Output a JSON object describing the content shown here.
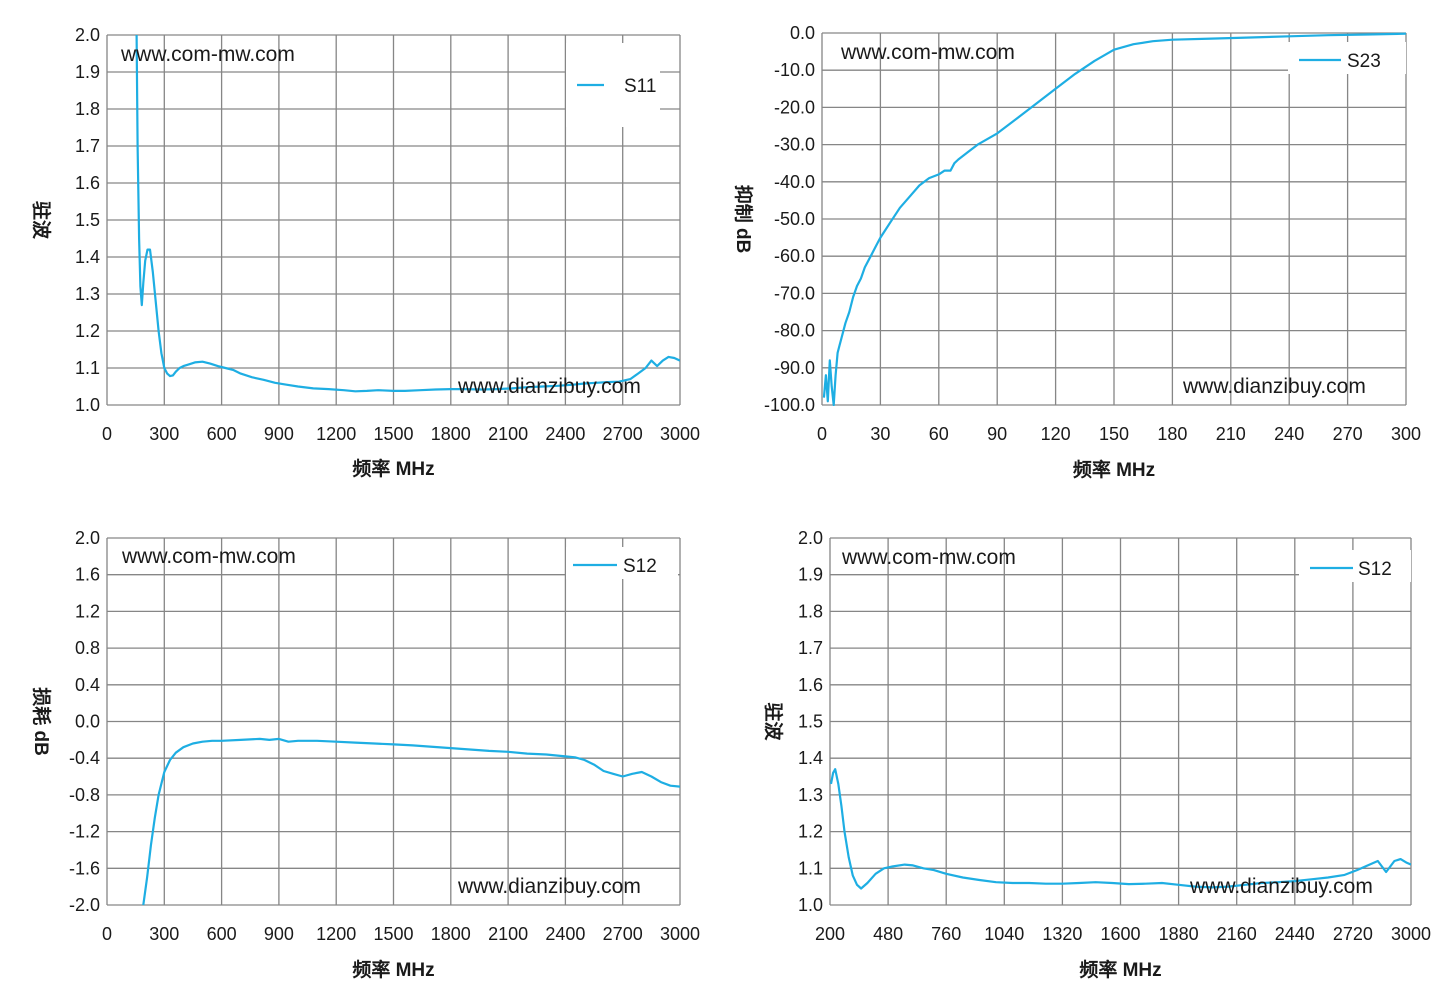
{
  "colors": {
    "series": "#1EAEE3",
    "grid": "#868686",
    "axis": "#868686",
    "text": "#1a1a1a"
  },
  "chart_data": [
    {
      "type": "line",
      "xlabel": "频率 MHz",
      "ylabel": "驻波",
      "xlim": [
        0,
        3000
      ],
      "ylim": [
        1.0,
        2.0
      ],
      "xticks": [
        "0",
        "300",
        "600",
        "900",
        "1200",
        "1500",
        "1800",
        "2100",
        "2400",
        "2700",
        "3000"
      ],
      "yticks": [
        "1.0",
        "1.1",
        "1.2",
        "1.3",
        "1.4",
        "1.5",
        "1.6",
        "1.7",
        "1.8",
        "1.9",
        "2.0"
      ],
      "watermarks": [
        "www.com-mw.com",
        "www.dianzibuy.com"
      ],
      "grid": true,
      "legend_position": "top-right",
      "series": [
        {
          "name": "S11",
          "x": [
            155,
            160,
            168,
            175,
            182,
            190,
            200,
            212,
            225,
            240,
            255,
            270,
            285,
            300,
            315,
            330,
            345,
            360,
            380,
            400,
            430,
            460,
            500,
            540,
            580,
            620,
            660,
            700,
            760,
            820,
            880,
            940,
            1000,
            1080,
            1160,
            1240,
            1300,
            1360,
            1420,
            1500,
            1560,
            1640,
            1720,
            1800,
            1880,
            1960,
            2040,
            2120,
            2200,
            2280,
            2360,
            2440,
            2500,
            2560,
            2620,
            2680,
            2740,
            2780,
            2820,
            2850,
            2880,
            2910,
            2940,
            2970,
            3000
          ],
          "y": [
            2.0,
            1.7,
            1.45,
            1.32,
            1.27,
            1.33,
            1.39,
            1.42,
            1.42,
            1.36,
            1.28,
            1.2,
            1.14,
            1.1,
            1.085,
            1.078,
            1.08,
            1.09,
            1.1,
            1.105,
            1.11,
            1.115,
            1.117,
            1.112,
            1.105,
            1.1,
            1.095,
            1.085,
            1.075,
            1.068,
            1.06,
            1.055,
            1.05,
            1.045,
            1.043,
            1.04,
            1.037,
            1.038,
            1.04,
            1.038,
            1.038,
            1.04,
            1.042,
            1.043,
            1.043,
            1.042,
            1.043,
            1.045,
            1.048,
            1.05,
            1.052,
            1.055,
            1.058,
            1.06,
            1.062,
            1.063,
            1.07,
            1.085,
            1.1,
            1.12,
            1.105,
            1.12,
            1.13,
            1.127,
            1.12
          ]
        }
      ]
    },
    {
      "type": "line",
      "xlabel": "频率 MHz",
      "ylabel": "抑制 dB",
      "xlim": [
        0,
        300
      ],
      "ylim": [
        -100,
        0
      ],
      "xticks": [
        "0",
        "30",
        "60",
        "90",
        "120",
        "150",
        "180",
        "210",
        "240",
        "270",
        "300"
      ],
      "yticks": [
        "-100.0",
        "-90.0",
        "-80.0",
        "-70.0",
        "-60.0",
        "-50.0",
        "-40.0",
        "-30.0",
        "-20.0",
        "-10.0",
        "0.0"
      ],
      "watermarks": [
        "www.com-mw.com",
        "www.dianzibuy.com"
      ],
      "grid": true,
      "legend_position": "top-right",
      "series": [
        {
          "name": "S23",
          "x": [
            1,
            2,
            3,
            4,
            5,
            6,
            7,
            8,
            9,
            10,
            12,
            14,
            16,
            18,
            20,
            22,
            25,
            28,
            30,
            35,
            40,
            45,
            50,
            55,
            60,
            63,
            66,
            68,
            70,
            75,
            80,
            90,
            100,
            110,
            120,
            130,
            140,
            150,
            160,
            170,
            180,
            200,
            220,
            240,
            260,
            280,
            300
          ],
          "y": [
            -98,
            -92,
            -99,
            -88,
            -95,
            -100,
            -92,
            -86,
            -84,
            -82,
            -78,
            -75,
            -71,
            -68,
            -66,
            -63,
            -60,
            -57,
            -55,
            -51,
            -47,
            -44,
            -41,
            -39,
            -38,
            -37,
            -37,
            -35,
            -34,
            -32,
            -30,
            -27,
            -23,
            -19,
            -15,
            -11,
            -7.5,
            -4.5,
            -3,
            -2.2,
            -1.8,
            -1.5,
            -1.2,
            -0.9,
            -0.6,
            -0.4,
            -0.2
          ]
        }
      ]
    },
    {
      "type": "line",
      "xlabel": "频率 MHz",
      "ylabel": "损耗 dB",
      "xlim": [
        0,
        3000
      ],
      "ylim": [
        -2.0,
        2.0
      ],
      "xticks": [
        "0",
        "300",
        "600",
        "900",
        "1200",
        "1500",
        "1800",
        "2100",
        "2400",
        "2700",
        "3000"
      ],
      "yticks": [
        "-2.0",
        "-1.6",
        "-1.2",
        "-0.8",
        "-0.4",
        "0.0",
        "0.4",
        "0.8",
        "1.2",
        "1.6",
        "2.0"
      ],
      "watermarks": [
        "www.com-mw.com",
        "www.dianzibuy.com"
      ],
      "grid": true,
      "legend_position": "top-right",
      "series": [
        {
          "name": "S12",
          "x": [
            190,
            210,
            230,
            250,
            270,
            300,
            330,
            360,
            400,
            450,
            500,
            550,
            600,
            700,
            800,
            850,
            900,
            950,
            1000,
            1100,
            1200,
            1300,
            1400,
            1500,
            1600,
            1800,
            2000,
            2100,
            2200,
            2300,
            2400,
            2450,
            2500,
            2550,
            2600,
            2650,
            2700,
            2750,
            2800,
            2850,
            2900,
            2950,
            3000
          ],
          "y": [
            -2.0,
            -1.7,
            -1.35,
            -1.05,
            -0.8,
            -0.55,
            -0.42,
            -0.34,
            -0.28,
            -0.24,
            -0.22,
            -0.21,
            -0.21,
            -0.2,
            -0.19,
            -0.2,
            -0.19,
            -0.22,
            -0.21,
            -0.21,
            -0.22,
            -0.23,
            -0.24,
            -0.25,
            -0.26,
            -0.29,
            -0.32,
            -0.33,
            -0.35,
            -0.36,
            -0.38,
            -0.39,
            -0.42,
            -0.47,
            -0.54,
            -0.57,
            -0.6,
            -0.57,
            -0.55,
            -0.6,
            -0.66,
            -0.7,
            -0.71
          ]
        }
      ]
    },
    {
      "type": "line",
      "xlabel": "频率 MHz",
      "ylabel": "驻波",
      "xlim": [
        200,
        3000
      ],
      "ylim": [
        1.0,
        2.0
      ],
      "xticks": [
        "200",
        "480",
        "760",
        "1040",
        "1320",
        "1600",
        "1880",
        "2160",
        "2440",
        "2720",
        "3000"
      ],
      "yticks": [
        "1.0",
        "1.1",
        "1.2",
        "1.3",
        "1.4",
        "1.5",
        "1.6",
        "1.7",
        "1.8",
        "1.9",
        "2.0"
      ],
      "watermarks": [
        "www.com-mw.com",
        "www.dianzibuy.com"
      ],
      "grid": true,
      "legend_position": "top-right",
      "series": [
        {
          "name": "S12",
          "x": [
            205,
            215,
            225,
            240,
            255,
            270,
            290,
            310,
            330,
            350,
            380,
            420,
            460,
            500,
            560,
            600,
            650,
            700,
            760,
            840,
            920,
            1000,
            1080,
            1160,
            1240,
            1320,
            1400,
            1480,
            1560,
            1640,
            1720,
            1800,
            1880,
            1960,
            2040,
            2120,
            2200,
            2280,
            2360,
            2440,
            2520,
            2600,
            2680,
            2740,
            2800,
            2840,
            2880,
            2920,
            2950,
            2980,
            3000
          ],
          "y": [
            1.33,
            1.36,
            1.37,
            1.33,
            1.27,
            1.2,
            1.13,
            1.08,
            1.055,
            1.045,
            1.06,
            1.085,
            1.1,
            1.105,
            1.11,
            1.108,
            1.1,
            1.095,
            1.085,
            1.075,
            1.068,
            1.062,
            1.06,
            1.06,
            1.058,
            1.058,
            1.06,
            1.062,
            1.06,
            1.057,
            1.058,
            1.06,
            1.055,
            1.05,
            1.048,
            1.05,
            1.055,
            1.06,
            1.062,
            1.065,
            1.07,
            1.075,
            1.082,
            1.095,
            1.11,
            1.12,
            1.09,
            1.12,
            1.125,
            1.115,
            1.11
          ]
        }
      ]
    }
  ]
}
